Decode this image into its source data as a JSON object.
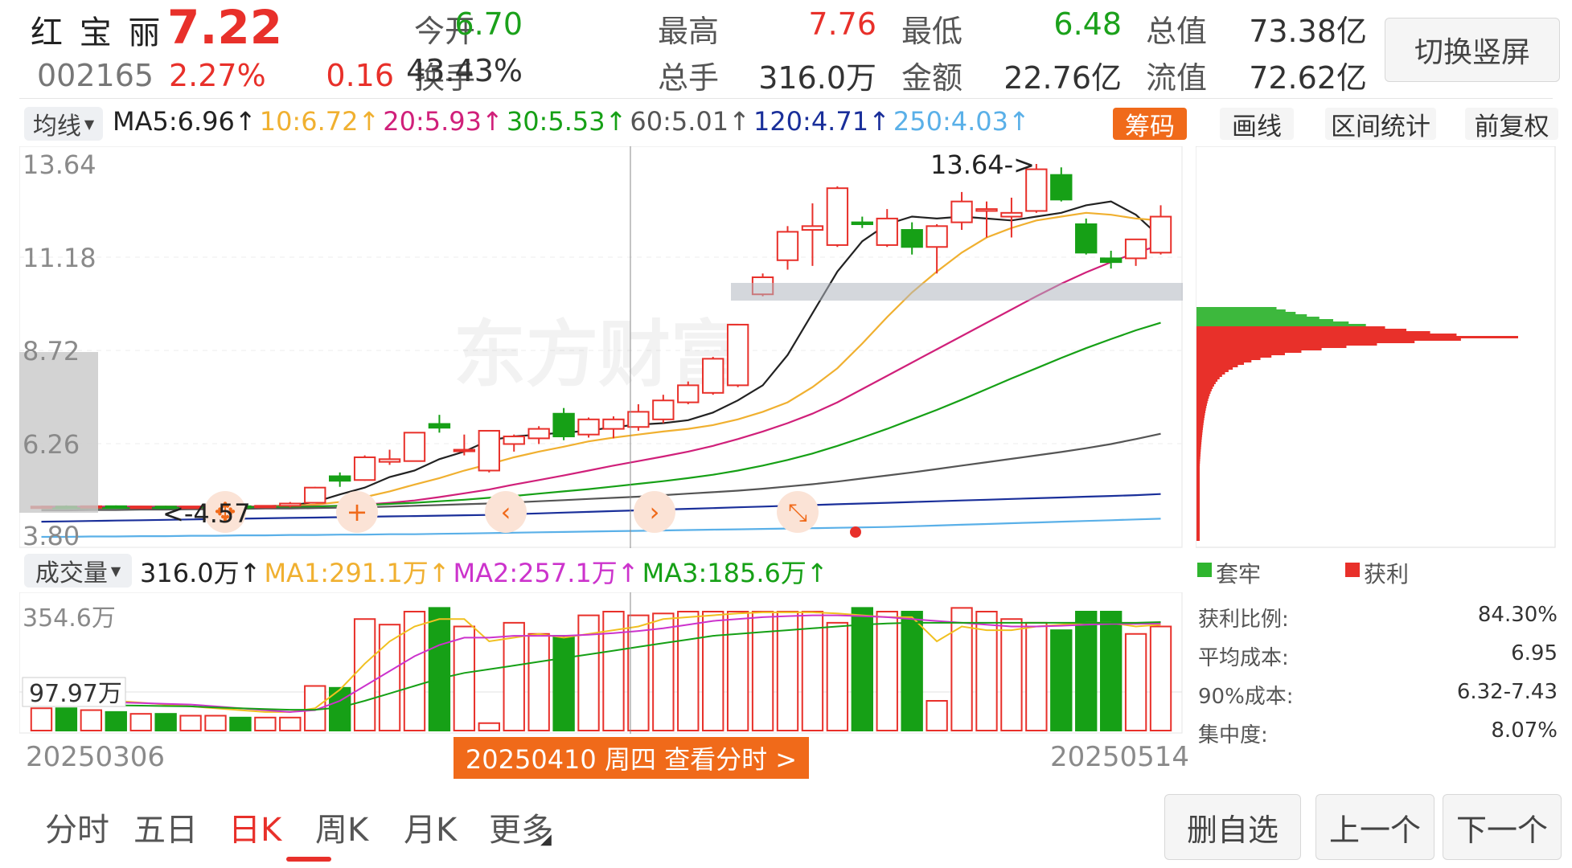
{
  "stock": {
    "name": "红 宝 丽",
    "price": "7.22",
    "code": "002165",
    "change_pct": "2.27%",
    "change_amt": "0.16"
  },
  "quote": [
    {
      "label": "今开",
      "value": "6.70",
      "color": "#1ba11b"
    },
    {
      "label": "最高",
      "value": "7.76",
      "color": "#e8302a"
    },
    {
      "label": "最低",
      "value": "6.48",
      "color": "#1ba11b"
    },
    {
      "label": "总值",
      "value": "73.38亿",
      "color": "#333333"
    },
    {
      "label": "换手",
      "value": "43.43%",
      "color": "#333333"
    },
    {
      "label": "总手",
      "value": "316.0万",
      "color": "#333333"
    },
    {
      "label": "金额",
      "value": "22.76亿",
      "color": "#333333"
    },
    {
      "label": "流值",
      "value": "72.62亿",
      "color": "#333333"
    }
  ],
  "switch_button": "切换竖屏",
  "ma_bar": {
    "selector": "均线",
    "items": [
      {
        "text": "MA5:6.96↑",
        "color": "#222222"
      },
      {
        "text": "10:6.72↑",
        "color": "#f0b030"
      },
      {
        "text": "20:5.93↑",
        "color": "#d0207a"
      },
      {
        "text": "30:5.53↑",
        "color": "#16a016"
      },
      {
        "text": "60:5.01↑",
        "color": "#555555"
      },
      {
        "text": "120:4.71↑",
        "color": "#1a2f9a"
      },
      {
        "text": "250:4.03↑",
        "color": "#5ab0e8"
      }
    ]
  },
  "tools": {
    "chips": "筹码",
    "draw": "画线",
    "range": "区间统计",
    "adjust": "前复权"
  },
  "price_axis": [
    "13.64",
    "11.18",
    "8.72",
    "6.26",
    "3.80"
  ],
  "annotations": {
    "high": "13.64->",
    "low": "<-4.57"
  },
  "watermark": "东方财富",
  "volume_bar": {
    "selector": "成交量",
    "items": [
      {
        "text": "316.0万↑",
        "color": "#222222"
      },
      {
        "text": "MA1:291.1万↑",
        "color": "#f0b030"
      },
      {
        "text": "MA2:257.1万↑",
        "color": "#cc33cc"
      },
      {
        "text": "MA3:185.6万↑",
        "color": "#16a016"
      }
    ]
  },
  "volume_axis": {
    "top": "354.6万",
    "mid": "97.97万"
  },
  "dates": {
    "start": "20250306",
    "end": "20250514",
    "cursor": "20250410 周四 查看分时 >"
  },
  "chip_legend": {
    "trapped": "套牢",
    "profit": "获利"
  },
  "chip_stats": [
    {
      "label": "获利比例:",
      "value": "84.30%"
    },
    {
      "label": "平均成本:",
      "value": "6.95"
    },
    {
      "label": "90%成本:",
      "value": "6.32-7.43"
    },
    {
      "label": "集中度:",
      "value": "8.07%"
    }
  ],
  "tabs": [
    "分时",
    "五日",
    "日K",
    "周K",
    "月K",
    "更多"
  ],
  "active_tab": "日K",
  "bottom_buttons": {
    "remove": "删自选",
    "prev": "上一个",
    "next": "下一个"
  },
  "colors": {
    "up": "#e8302a",
    "down": "#16a016",
    "accent": "#f06a1a"
  },
  "chart_data": {
    "type": "candlestick",
    "ylim": [
      3.8,
      13.64
    ],
    "candles": [
      {
        "o": 4.59,
        "h": 4.62,
        "l": 4.55,
        "c": 4.6
      },
      {
        "o": 4.6,
        "h": 4.63,
        "l": 4.56,
        "c": 4.58
      },
      {
        "o": 4.58,
        "h": 4.62,
        "l": 4.57,
        "c": 4.61
      },
      {
        "o": 4.61,
        "h": 4.63,
        "l": 4.57,
        "c": 4.59
      },
      {
        "o": 4.59,
        "h": 4.61,
        "l": 4.56,
        "c": 4.6
      },
      {
        "o": 4.6,
        "h": 4.62,
        "l": 4.57,
        "c": 4.58
      },
      {
        "o": 4.58,
        "h": 4.6,
        "l": 4.57,
        "c": 4.6
      },
      {
        "o": 4.6,
        "h": 4.62,
        "l": 4.58,
        "c": 4.61
      },
      {
        "o": 4.61,
        "h": 4.62,
        "l": 4.59,
        "c": 4.6
      },
      {
        "o": 4.6,
        "h": 4.63,
        "l": 4.59,
        "c": 4.62
      },
      {
        "o": 4.62,
        "h": 4.72,
        "l": 4.58,
        "c": 4.68
      },
      {
        "o": 4.7,
        "h": 5.12,
        "l": 4.69,
        "c": 5.1
      },
      {
        "o": 5.4,
        "h": 5.5,
        "l": 5.12,
        "c": 5.28
      },
      {
        "o": 5.3,
        "h": 5.95,
        "l": 5.28,
        "c": 5.9
      },
      {
        "o": 5.78,
        "h": 6.1,
        "l": 5.7,
        "c": 5.85
      },
      {
        "o": 5.8,
        "h": 6.55,
        "l": 5.8,
        "c": 6.55
      },
      {
        "o": 6.78,
        "h": 7.02,
        "l": 6.55,
        "c": 6.68
      },
      {
        "o": 6.1,
        "h": 6.5,
        "l": 5.95,
        "c": 6.1
      },
      {
        "o": 5.55,
        "h": 6.62,
        "l": 5.5,
        "c": 6.6
      },
      {
        "o": 6.25,
        "h": 6.5,
        "l": 6.05,
        "c": 6.45
      },
      {
        "o": 6.4,
        "h": 6.72,
        "l": 6.25,
        "c": 6.65
      },
      {
        "o": 7.05,
        "h": 7.2,
        "l": 6.35,
        "c": 6.45
      },
      {
        "o": 6.5,
        "h": 6.95,
        "l": 6.42,
        "c": 6.9
      },
      {
        "o": 6.65,
        "h": 6.98,
        "l": 6.4,
        "c": 6.9
      },
      {
        "o": 6.7,
        "h": 7.3,
        "l": 6.6,
        "c": 7.1
      },
      {
        "o": 6.9,
        "h": 7.55,
        "l": 6.8,
        "c": 7.4
      },
      {
        "o": 7.35,
        "h": 7.9,
        "l": 7.3,
        "c": 7.8
      },
      {
        "o": 7.6,
        "h": 8.55,
        "l": 7.55,
        "c": 8.5
      },
      {
        "o": 7.8,
        "h": 9.4,
        "l": 7.75,
        "c": 9.4
      },
      {
        "o": 10.2,
        "h": 10.75,
        "l": 10.15,
        "c": 10.65
      },
      {
        "o": 11.1,
        "h": 12.0,
        "l": 10.85,
        "c": 11.85
      },
      {
        "o": 11.9,
        "h": 12.6,
        "l": 10.95,
        "c": 12.0
      },
      {
        "o": 11.5,
        "h": 13.05,
        "l": 11.45,
        "c": 13.0
      },
      {
        "o": 12.1,
        "h": 12.25,
        "l": 11.95,
        "c": 12.05
      },
      {
        "o": 11.5,
        "h": 12.45,
        "l": 11.45,
        "c": 12.2
      },
      {
        "o": 11.9,
        "h": 12.1,
        "l": 11.25,
        "c": 11.45
      },
      {
        "o": 11.45,
        "h": 12.05,
        "l": 10.75,
        "c": 12.0
      },
      {
        "o": 12.1,
        "h": 12.9,
        "l": 11.9,
        "c": 12.65
      },
      {
        "o": 12.4,
        "h": 12.65,
        "l": 11.7,
        "c": 12.45
      },
      {
        "o": 12.25,
        "h": 12.75,
        "l": 11.7,
        "c": 12.35
      },
      {
        "o": 12.4,
        "h": 13.64,
        "l": 12.35,
        "c": 13.5
      },
      {
        "o": 13.35,
        "h": 13.55,
        "l": 12.65,
        "c": 12.7
      },
      {
        "o": 12.05,
        "h": 12.2,
        "l": 11.25,
        "c": 11.3
      },
      {
        "o": 11.15,
        "h": 11.35,
        "l": 10.88,
        "c": 11.05
      },
      {
        "o": 11.15,
        "h": 11.65,
        "l": 10.95,
        "c": 11.65
      },
      {
        "o": 11.3,
        "h": 12.55,
        "l": 11.25,
        "c": 12.25
      }
    ],
    "ma_series": [
      {
        "name": "MA5",
        "color": "#222222",
        "start": 0,
        "values": [
          4.58,
          4.59,
          4.59,
          4.6,
          4.6,
          4.59,
          4.59,
          4.6,
          4.6,
          4.61,
          4.63,
          4.72,
          4.92,
          5.1,
          5.38,
          5.55,
          5.85,
          6.05,
          6.35,
          6.45,
          6.5,
          6.55,
          6.6,
          6.7,
          6.76,
          6.8,
          6.88,
          7.08,
          7.4,
          7.8,
          8.6,
          9.7,
          10.8,
          11.6,
          12.05,
          12.25,
          12.2,
          12.25,
          12.2,
          12.15,
          12.25,
          12.35,
          12.55,
          12.65,
          12.3,
          11.7
        ]
      },
      {
        "name": "MA10",
        "color": "#f0b030",
        "start": 0,
        "values": [
          4.6,
          4.6,
          4.6,
          4.6,
          4.6,
          4.6,
          4.6,
          4.6,
          4.6,
          4.61,
          4.62,
          4.65,
          4.72,
          4.85,
          5.0,
          5.18,
          5.35,
          5.55,
          5.72,
          5.9,
          6.05,
          6.18,
          6.32,
          6.42,
          6.5,
          6.58,
          6.65,
          6.75,
          6.9,
          7.1,
          7.35,
          7.75,
          8.25,
          8.9,
          9.6,
          10.25,
          10.8,
          11.3,
          11.7,
          11.95,
          12.15,
          12.25,
          12.35,
          12.3,
          12.2,
          12.15
        ]
      },
      {
        "name": "MA20",
        "color": "#d0207a",
        "start": 0,
        "values": [
          4.6,
          4.6,
          4.6,
          4.6,
          4.6,
          4.6,
          4.6,
          4.6,
          4.6,
          4.6,
          4.6,
          4.61,
          4.62,
          4.65,
          4.7,
          4.76,
          4.85,
          4.95,
          5.05,
          5.18,
          5.3,
          5.42,
          5.55,
          5.68,
          5.8,
          5.92,
          6.05,
          6.2,
          6.38,
          6.58,
          6.8,
          7.05,
          7.35,
          7.7,
          8.05,
          8.4,
          8.75,
          9.1,
          9.45,
          9.8,
          10.15,
          10.48,
          10.78,
          11.05,
          11.3,
          11.5
        ]
      },
      {
        "name": "MA30",
        "color": "#16a016",
        "start": 0,
        "values": [
          4.55,
          4.55,
          4.56,
          4.56,
          4.56,
          4.57,
          4.57,
          4.58,
          4.58,
          4.59,
          4.59,
          4.6,
          4.62,
          4.64,
          4.67,
          4.7,
          4.74,
          4.78,
          4.83,
          4.88,
          4.94,
          5.0,
          5.06,
          5.13,
          5.2,
          5.27,
          5.35,
          5.44,
          5.55,
          5.68,
          5.83,
          6.0,
          6.2,
          6.42,
          6.65,
          6.9,
          7.15,
          7.42,
          7.7,
          7.98,
          8.25,
          8.52,
          8.78,
          9.02,
          9.25,
          9.45
        ]
      },
      {
        "name": "MA60",
        "color": "#555555",
        "start": 0,
        "values": [
          4.5,
          4.5,
          4.51,
          4.51,
          4.52,
          4.52,
          4.53,
          4.53,
          4.54,
          4.55,
          4.55,
          4.56,
          4.57,
          4.58,
          4.6,
          4.62,
          4.64,
          4.66,
          4.68,
          4.71,
          4.74,
          4.77,
          4.8,
          4.83,
          4.86,
          4.9,
          4.94,
          4.98,
          5.02,
          5.07,
          5.13,
          5.19,
          5.26,
          5.34,
          5.42,
          5.5,
          5.59,
          5.68,
          5.77,
          5.86,
          5.95,
          6.04,
          6.14,
          6.25,
          6.38,
          6.52
        ]
      },
      {
        "name": "MA120",
        "color": "#1a2f9a",
        "start": 0,
        "values": [
          4.2,
          4.21,
          4.22,
          4.23,
          4.24,
          4.25,
          4.26,
          4.27,
          4.28,
          4.29,
          4.3,
          4.31,
          4.32,
          4.33,
          4.34,
          4.35,
          4.36,
          4.37,
          4.38,
          4.4,
          4.42,
          4.44,
          4.46,
          4.48,
          4.5,
          4.52,
          4.54,
          4.56,
          4.58,
          4.6,
          4.62,
          4.64,
          4.66,
          4.68,
          4.7,
          4.72,
          4.74,
          4.76,
          4.78,
          4.8,
          4.82,
          4.84,
          4.86,
          4.88,
          4.9,
          4.93
        ]
      },
      {
        "name": "MA250",
        "color": "#5ab0e8",
        "start": 0,
        "values": [
          3.8,
          3.8,
          3.81,
          3.81,
          3.82,
          3.82,
          3.83,
          3.83,
          3.84,
          3.84,
          3.85,
          3.85,
          3.86,
          3.86,
          3.87,
          3.87,
          3.88,
          3.89,
          3.9,
          3.91,
          3.92,
          3.93,
          3.94,
          3.95,
          3.96,
          3.97,
          3.98,
          3.99,
          4.0,
          4.01,
          4.02,
          4.03,
          4.04,
          4.05,
          4.06,
          4.08,
          4.1,
          4.12,
          4.14,
          4.16,
          4.18,
          4.2,
          4.22,
          4.24,
          4.26,
          4.28
        ]
      }
    ],
    "volume": {
      "max": 354.6,
      "values": [
        60,
        60,
        55,
        50,
        45,
        45,
        40,
        40,
        35,
        35,
        35,
        120,
        115,
        300,
        285,
        320,
        330,
        280,
        20,
        290,
        260,
        255,
        310,
        320,
        310,
        315,
        320,
        320,
        320,
        320,
        320,
        320,
        290,
        330,
        320,
        320,
        80,
        330,
        320,
        300,
        290,
        270,
        320,
        320,
        260,
        280
      ],
      "ma1": [
        90,
        90,
        85,
        80,
        75,
        70,
        65,
        60,
        55,
        50,
        50,
        60,
        110,
        180,
        240,
        280,
        300,
        300,
        240,
        250,
        260,
        250,
        260,
        270,
        280,
        300,
        305,
        310,
        315,
        318,
        318,
        318,
        315,
        310,
        305,
        305,
        240,
        280,
        270,
        270,
        280,
        285,
        290,
        290,
        280,
        285
      ],
      "ma2": [
        80,
        80,
        78,
        76,
        74,
        72,
        70,
        65,
        60,
        55,
        50,
        55,
        80,
        120,
        160,
        200,
        230,
        250,
        250,
        255,
        255,
        255,
        258,
        262,
        268,
        275,
        285,
        295,
        300,
        305,
        308,
        310,
        310,
        308,
        305,
        300,
        295,
        290,
        285,
        280,
        280,
        282,
        285,
        287,
        287,
        288
      ],
      "ma3": [
        70,
        70,
        69,
        68,
        67,
        66,
        65,
        62,
        60,
        58,
        56,
        56,
        62,
        80,
        100,
        120,
        140,
        155,
        165,
        175,
        185,
        195,
        205,
        215,
        225,
        235,
        245,
        255,
        260,
        265,
        270,
        275,
        280,
        285,
        288,
        290,
        290,
        290,
        290,
        290,
        290,
        290,
        290,
        290,
        290,
        292
      ]
    }
  }
}
